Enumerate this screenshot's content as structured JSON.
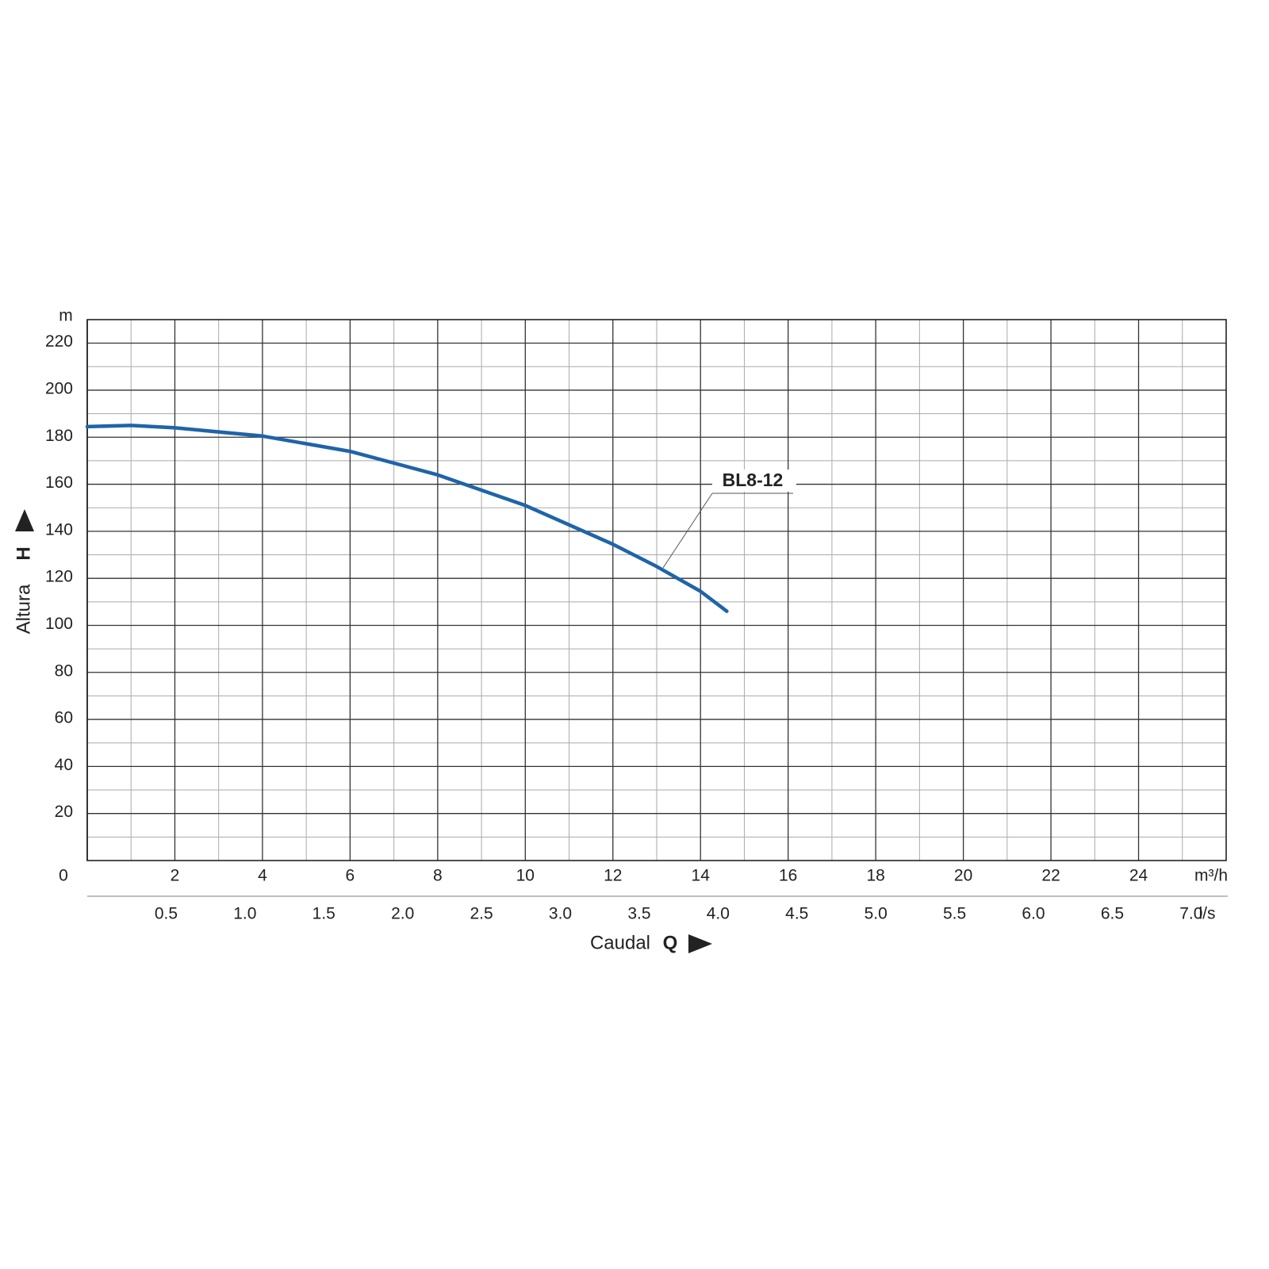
{
  "chart_data": {
    "type": "line",
    "x_unit": "m³/h",
    "x2_unit": "l/s",
    "y_unit": "m",
    "xlabel": "Caudal",
    "xlabel_symbol": "Q",
    "ylabel": "Altura",
    "ylabel_symbol": "H",
    "x": [
      0,
      1,
      2,
      4,
      6,
      8,
      10,
      12,
      13,
      14,
      14.6
    ],
    "series": [
      {
        "name": "BL8-12",
        "color": "#1f64a8",
        "values": [
          184.5,
          185,
          184,
          180.5,
          174,
          164,
          151,
          134.5,
          125,
          114.5,
          106
        ]
      }
    ],
    "xlim": [
      0,
      26
    ],
    "ylim": [
      0,
      230
    ],
    "x2lim": [
      0,
      7.222
    ],
    "xticks": [
      0,
      2,
      4,
      6,
      8,
      10,
      12,
      14,
      16,
      18,
      20,
      22,
      24
    ],
    "xminor": [
      1,
      3,
      5,
      7,
      9,
      11,
      13,
      15,
      17,
      19,
      21,
      23,
      25
    ],
    "yticks": [
      20,
      40,
      60,
      80,
      100,
      120,
      140,
      160,
      180,
      200,
      220
    ],
    "yminor": [
      10,
      30,
      50,
      70,
      90,
      110,
      130,
      150,
      170,
      190,
      210
    ],
    "x2ticks": [
      0.5,
      {
        "value": 1,
        "label": "1.0"
      },
      1.5,
      {
        "value": 2,
        "label": "2.0"
      },
      2.5,
      {
        "value": 3,
        "label": "3.0"
      },
      3.5,
      {
        "value": 4,
        "label": "4.0"
      },
      4.5,
      {
        "value": 5,
        "label": "5.0"
      },
      5.5,
      {
        "value": 6,
        "label": "6.0"
      },
      6.5,
      {
        "value": 7,
        "label": "7.0"
      }
    ],
    "grid": true
  }
}
